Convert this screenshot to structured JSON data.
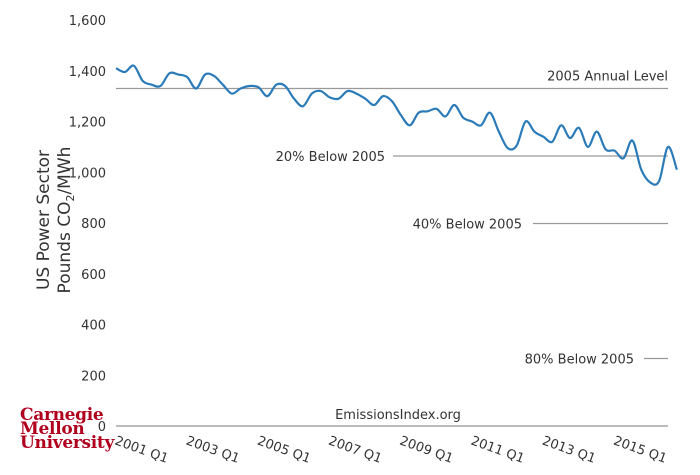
{
  "chart_data": {
    "type": "line",
    "ylabel_line1": "US Power Sector",
    "ylabel_line2_prefix": "Pounds CO",
    "ylabel_line2_sub": "2",
    "ylabel_line2_suffix": "/MWh",
    "ylim": [
      0,
      1600
    ],
    "yticks": [
      0,
      200,
      400,
      600,
      800,
      1000,
      1200,
      1400,
      1600
    ],
    "ytick_labels": [
      "0",
      "200",
      "400",
      "600",
      "800",
      "1,000",
      "1,200",
      "1,400",
      "1,600"
    ],
    "xticks": [
      {
        "t": 0,
        "label": "2001 Q1"
      },
      {
        "t": 8,
        "label": "2003 Q1"
      },
      {
        "t": 16,
        "label": "2005 Q1"
      },
      {
        "t": 24,
        "label": "2007 Q1"
      },
      {
        "t": 32,
        "label": "2009 Q1"
      },
      {
        "t": 40,
        "label": "2011 Q1"
      },
      {
        "t": 48,
        "label": "2013 Q1"
      },
      {
        "t": 56,
        "label": "2015 Q1"
      }
    ],
    "xlim": [
      0,
      62
    ],
    "series": [
      {
        "color": "#2b7bb9",
        "values": [
          1410,
          1395,
          1420,
          1360,
          1345,
          1340,
          1390,
          1385,
          1375,
          1330,
          1385,
          1380,
          1345,
          1310,
          1330,
          1340,
          1335,
          1300,
          1345,
          1340,
          1290,
          1260,
          1310,
          1320,
          1295,
          1290,
          1320,
          1310,
          1290,
          1265,
          1300,
          1280,
          1225,
          1185,
          1235,
          1240,
          1250,
          1220,
          1265,
          1215,
          1200,
          1185,
          1235,
          1160,
          1095,
          1105,
          1200,
          1160,
          1140,
          1120,
          1185,
          1135,
          1175,
          1100,
          1160,
          1090,
          1085,
          1055,
          1125,
          1010,
          960,
          965,
          1100,
          1010
        ]
      }
    ],
    "reference_lines": [
      {
        "value": 1330,
        "label": "2005 Annual Level",
        "color": "#999999"
      },
      {
        "value": 1064,
        "label": "20% Below 2005",
        "color": "#999999"
      },
      {
        "value": 798,
        "label": "40% Below 2005",
        "color": "#999999"
      },
      {
        "value": 266,
        "label": "80% Below 2005",
        "color": "#999999"
      }
    ],
    "source_text": "EmissionsIndex.org"
  },
  "logo": {
    "line1": "Carnegie",
    "line2": "Mellon",
    "line3": "University",
    "color": "#b1001e"
  }
}
